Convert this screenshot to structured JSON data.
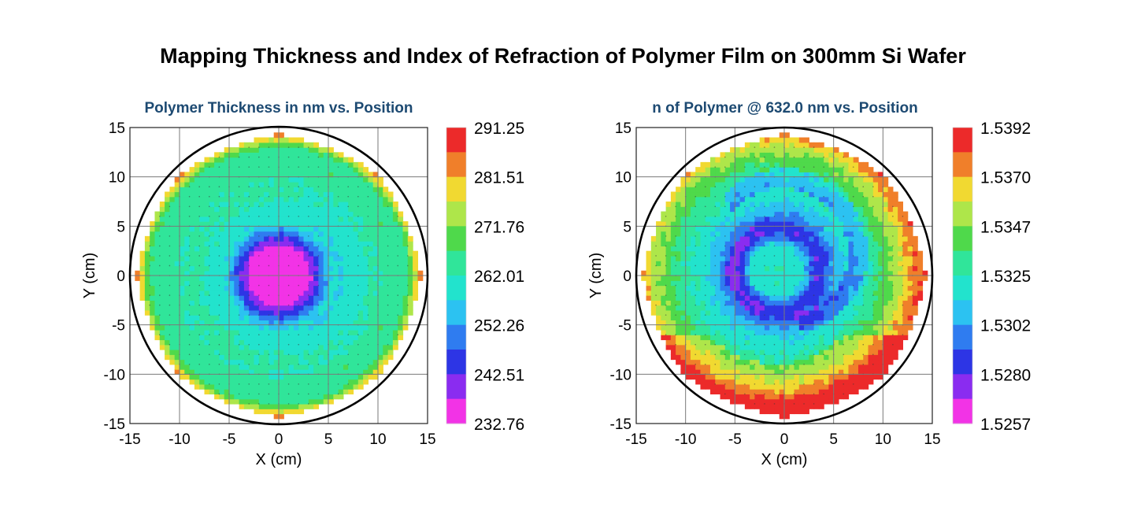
{
  "title": "Mapping Thickness and Index of Refraction of Polymer Film on 300mm Si Wafer",
  "chart_data": [
    {
      "type": "heatmap",
      "title": "Polymer Thickness in nm vs. Position",
      "xlabel": "X (cm)",
      "ylabel": "Y (cm)",
      "xlim": [
        -15,
        15
      ],
      "ylim": [
        -15,
        15
      ],
      "xticks": [
        "-15",
        "-10",
        "-5",
        "0",
        "5",
        "10",
        "15"
      ],
      "yticks": [
        "15",
        "10",
        "5",
        "0",
        "-5",
        "-10",
        "-15"
      ],
      "grid": true,
      "colorbar_labels": [
        "291.25",
        "281.51",
        "271.76",
        "262.01",
        "252.26",
        "242.51",
        "232.76"
      ],
      "colorbar_colors": [
        "#ec2a2a",
        "#f07f2a",
        "#f1d931",
        "#aee64a",
        "#4fd94b",
        "#30e59a",
        "#22e3cd",
        "#2cc2f1",
        "#2f7cf0",
        "#2d35e5",
        "#8a2cf0",
        "#f233e6"
      ],
      "value_range": [
        232.76,
        291.25
      ],
      "pattern": "radial",
      "profile": [
        [
          0,
          233
        ],
        [
          3,
          236
        ],
        [
          3.8,
          243
        ],
        [
          4.5,
          250
        ],
        [
          5.2,
          257
        ],
        [
          6.8,
          260.5
        ],
        [
          8.5,
          263
        ],
        [
          10,
          262
        ],
        [
          11.5,
          266
        ],
        [
          12.5,
          264
        ],
        [
          13.2,
          268
        ],
        [
          13.8,
          278
        ],
        [
          14.3,
          283
        ]
      ]
    },
    {
      "type": "heatmap",
      "title": "n of Polymer @ 632.0 nm vs. Position",
      "xlabel": "X (cm)",
      "ylabel": "Y (cm)",
      "xlim": [
        -15,
        15
      ],
      "ylim": [
        -15,
        15
      ],
      "xticks": [
        "-15",
        "-10",
        "-5",
        "0",
        "5",
        "10",
        "15"
      ],
      "yticks": [
        "15",
        "10",
        "5",
        "0",
        "-5",
        "-10",
        "-15"
      ],
      "grid": true,
      "colorbar_labels": [
        "1.5392",
        "1.5370",
        "1.5347",
        "1.5325",
        "1.5302",
        "1.5280",
        "1.5257"
      ],
      "colorbar_colors": [
        "#ec2a2a",
        "#f07f2a",
        "#f1d931",
        "#aee64a",
        "#4fd94b",
        "#30e59a",
        "#22e3cd",
        "#2cc2f1",
        "#2f7cf0",
        "#2d35e5",
        "#8a2cf0",
        "#f233e6"
      ],
      "value_range": [
        1.5257,
        1.5392
      ],
      "pattern": "ring",
      "profile": [
        [
          0,
          1.5322
        ],
        [
          2.5,
          1.5318
        ],
        [
          3.5,
          1.5295
        ],
        [
          4.2,
          1.5282
        ],
        [
          5,
          1.529
        ],
        [
          6,
          1.5305
        ],
        [
          7.5,
          1.5318
        ],
        [
          9.5,
          1.5328
        ],
        [
          11,
          1.534
        ],
        [
          12.5,
          1.5355
        ],
        [
          13.5,
          1.5372
        ],
        [
          14.3,
          1.5378
        ]
      ]
    }
  ]
}
